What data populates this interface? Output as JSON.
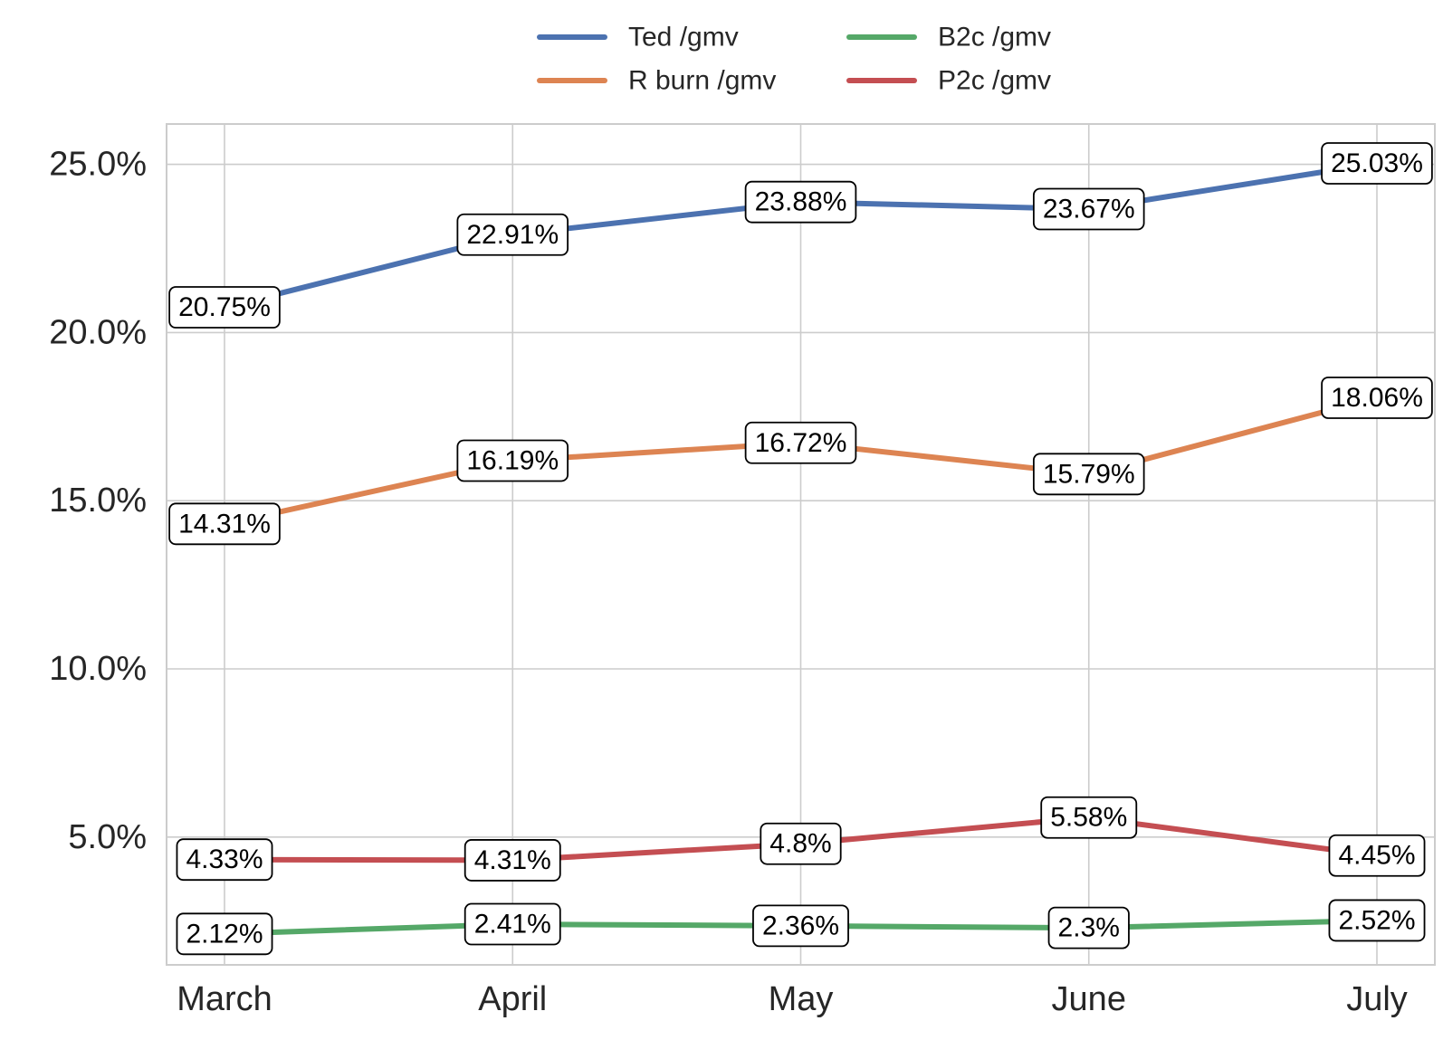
{
  "chart_data": {
    "type": "line",
    "title": "",
    "xlabel": "",
    "ylabel": "",
    "categories": [
      "March",
      "April",
      "May",
      "June",
      "July"
    ],
    "ylim": [
      1.2,
      26.2
    ],
    "yticks": [
      5.0,
      10.0,
      15.0,
      20.0,
      25.0
    ],
    "ytick_labels": [
      "5.0%",
      "10.0%",
      "15.0%",
      "20.0%",
      "25.0%"
    ],
    "grid": true,
    "legend_placement": "top-center",
    "legend_columns": 2,
    "series": [
      {
        "name": "Ted /gmv",
        "color": "#4c72b0",
        "values": [
          20.75,
          22.91,
          23.88,
          23.67,
          25.03
        ],
        "labels": [
          "20.75%",
          "22.91%",
          "23.88%",
          "23.67%",
          "25.03%"
        ]
      },
      {
        "name": "R burn /gmv",
        "color": "#dd8452",
        "values": [
          14.31,
          16.19,
          16.72,
          15.79,
          18.06
        ],
        "labels": [
          "14.31%",
          "16.19%",
          "16.72%",
          "15.79%",
          "18.06%"
        ]
      },
      {
        "name": "B2c /gmv",
        "color": "#55a868",
        "values": [
          2.12,
          2.41,
          2.36,
          2.3,
          2.52
        ],
        "labels": [
          "2.12%",
          "2.41%",
          "2.36%",
          "2.3%",
          "2.52%"
        ]
      },
      {
        "name": "P2c /gmv",
        "color": "#c44e52",
        "values": [
          4.33,
          4.31,
          4.8,
          5.58,
          4.45
        ],
        "labels": [
          "4.33%",
          "4.31%",
          "4.8%",
          "5.58%",
          "4.45%"
        ]
      }
    ]
  }
}
